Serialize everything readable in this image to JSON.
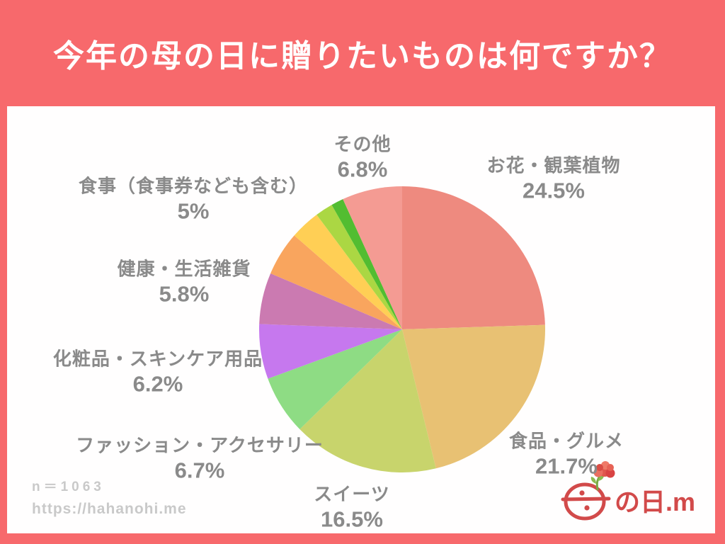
{
  "title": "今年の母の日に贈りたいものは何ですか？",
  "footer": {
    "sample_size": "n＝1063",
    "source_url": "https://hahanohi.me"
  },
  "logo": {
    "text": "の日.me",
    "color": "#d24a4a"
  },
  "colors": {
    "background": "#f7696c",
    "panel": "#fffefe",
    "label_text": "#8a8a8a",
    "footnote_text": "#c9c9c9",
    "title_text": "#ffffff"
  },
  "chart_data": {
    "type": "pie",
    "title": "今年の母の日に贈りたいものは何ですか？",
    "sample_size": "n＝1063",
    "start_angle": "12-oclock",
    "direction": "clockwise",
    "total": 100,
    "legend_position": "around-pie",
    "slices": [
      {
        "label": "お花・観葉植物",
        "value": 24.5,
        "pct": "24.5%",
        "color": "#ee8a7f",
        "labeled": true
      },
      {
        "label": "食品・グルメ",
        "value": 21.7,
        "pct": "21.7%",
        "color": "#e8c173",
        "labeled": true
      },
      {
        "label": "スイーツ",
        "value": 16.5,
        "pct": "16.5%",
        "color": "#c8d46c",
        "labeled": true
      },
      {
        "label": "ファッション・アクセサリー",
        "value": 6.7,
        "pct": "6.7%",
        "color": "#8edc84",
        "labeled": true
      },
      {
        "label": "化粧品・スキンケア用品",
        "value": 6.2,
        "pct": "6.2%",
        "color": "#c678ee",
        "labeled": true
      },
      {
        "label": "健康・生活雑貨",
        "value": 5.8,
        "pct": "5.8%",
        "color": "#cb7ab1",
        "labeled": true
      },
      {
        "label": "食事（食事券なども含む）",
        "value": 5,
        "pct": "5%",
        "color": "#f9a55e",
        "labeled": true
      },
      {
        "label": "",
        "value": 3.4,
        "pct": "",
        "color": "#ffcf55",
        "labeled": false
      },
      {
        "label": "",
        "value": 2.0,
        "pct": "",
        "color": "#abd743",
        "labeled": false
      },
      {
        "label": "",
        "value": 1.4,
        "pct": "",
        "color": "#52bd31",
        "labeled": false
      },
      {
        "label": "その他",
        "value": 6.8,
        "pct": "6.8%",
        "color": "#f49b93",
        "labeled": true
      }
    ]
  }
}
